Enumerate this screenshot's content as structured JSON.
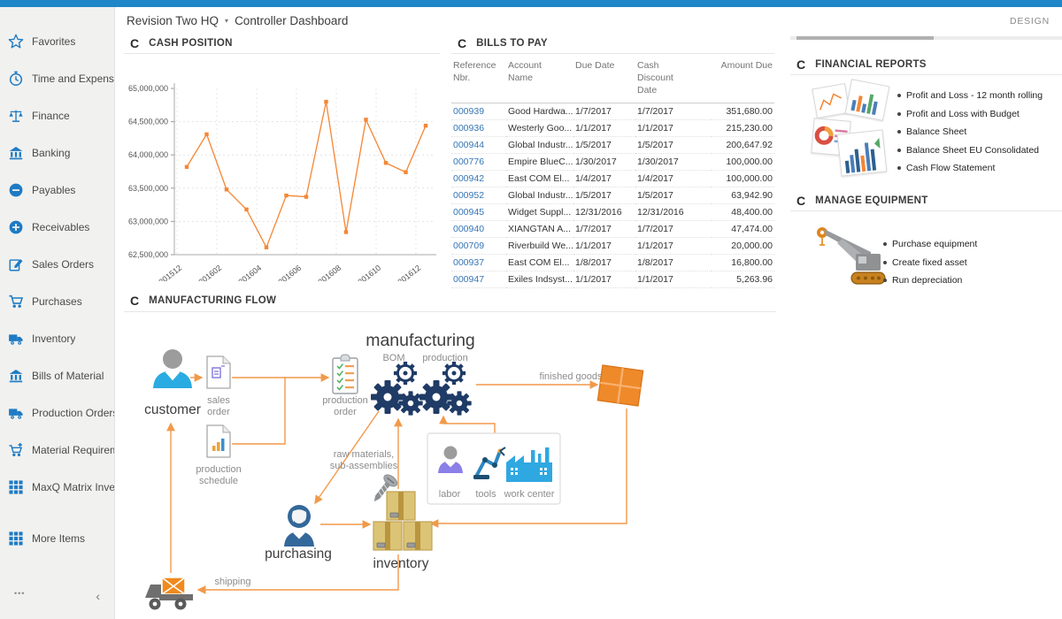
{
  "header": {
    "company": "Revision Two HQ",
    "caret": "▾",
    "page_title": "Controller Dashboard",
    "design_label": "DESIGN"
  },
  "sidebar": {
    "items": [
      {
        "label": "Favorites",
        "icon": "star-icon"
      },
      {
        "label": "Time and Expenses",
        "icon": "clock-icon"
      },
      {
        "label": "Finance",
        "icon": "scales-icon"
      },
      {
        "label": "Banking",
        "icon": "bank-icon"
      },
      {
        "label": "Payables",
        "icon": "minus-circle-icon"
      },
      {
        "label": "Receivables",
        "icon": "plus-circle-icon"
      },
      {
        "label": "Sales Orders",
        "icon": "edit-icon"
      },
      {
        "label": "Purchases",
        "icon": "cart-icon"
      },
      {
        "label": "Inventory",
        "icon": "truck-icon"
      },
      {
        "label": "Bills of Material",
        "icon": "building-icon"
      },
      {
        "label": "Production Orders",
        "icon": "truck-icon"
      },
      {
        "label": "Material Requirem...",
        "icon": "cart-plus-icon"
      },
      {
        "label": "MaxQ Matrix Invent...",
        "icon": "grid-icon"
      },
      {
        "label": "More Items",
        "icon": "grid-icon"
      }
    ],
    "more_dots": "•••",
    "collapse": "‹"
  },
  "cash_position": {
    "title": "CASH POSITION",
    "refresh_glyph": "C"
  },
  "chart_data": {
    "type": "line",
    "title": "CASH POSITION",
    "x": [
      "201512",
      "201601",
      "201602",
      "201603",
      "201604",
      "201605",
      "201606",
      "201607",
      "201608",
      "201609",
      "201610",
      "201611",
      "201612"
    ],
    "values": [
      63820000,
      64310000,
      63480000,
      63180000,
      62610000,
      63390000,
      63370000,
      64800000,
      62840000,
      64530000,
      63880000,
      63740000,
      64440000
    ],
    "x_tick_labels": [
      "201512",
      "201602",
      "201604",
      "201606",
      "201608",
      "201610",
      "201612"
    ],
    "y_ticks": [
      "65,000,000",
      "64,500,000",
      "64,000,000",
      "63,500,000",
      "63,000,000",
      "62,500,000"
    ],
    "ylim": [
      62500000,
      65000000
    ],
    "line_color": "#f58634",
    "grid": true,
    "legend": "none"
  },
  "bills": {
    "title": "BILLS TO PAY",
    "refresh_glyph": "C",
    "columns": [
      [
        "Reference",
        "Nbr."
      ],
      [
        "Account",
        "Name"
      ],
      [
        "Due Date"
      ],
      [
        "Cash",
        "Discount",
        "Date"
      ],
      [
        "Amount Due"
      ]
    ],
    "rows": [
      [
        "000939",
        "Good Hardwa...",
        "1/7/2017",
        "1/7/2017",
        "351,680.00"
      ],
      [
        "000936",
        "Westerly Goo...",
        "1/1/2017",
        "1/1/2017",
        "215,230.00"
      ],
      [
        "000944",
        "Global Industr...",
        "1/5/2017",
        "1/5/2017",
        "200,647.92"
      ],
      [
        "000776",
        "Empire BlueC...",
        "1/30/2017",
        "1/30/2017",
        "100,000.00"
      ],
      [
        "000942",
        "East COM El...",
        "1/4/2017",
        "1/4/2017",
        "100,000.00"
      ],
      [
        "000952",
        "Global Industr...",
        "1/5/2017",
        "1/5/2017",
        "63,942.90"
      ],
      [
        "000945",
        "Widget Suppl...",
        "12/31/2016",
        "12/31/2016",
        "48,400.00"
      ],
      [
        "000940",
        "XIANGTAN A...",
        "1/7/2017",
        "1/7/2017",
        "47,474.00"
      ],
      [
        "000709",
        "Riverbuild We...",
        "1/1/2017",
        "1/1/2017",
        "20,000.00"
      ],
      [
        "000937",
        "East COM El...",
        "1/8/2017",
        "1/8/2017",
        "16,800.00"
      ],
      [
        "000947",
        "Exiles Indsyst...",
        "1/1/2017",
        "1/1/2017",
        "5,263.96"
      ]
    ]
  },
  "financial_reports": {
    "title": "FINANCIAL REPORTS",
    "refresh_glyph": "C",
    "items": [
      "Profit and Loss - 12 month rolling",
      "Profit and Loss with Budget",
      "Balance Sheet",
      "Balance Sheet EU Consolidated",
      "Cash Flow Statement"
    ]
  },
  "manage_equipment": {
    "title": "MANAGE EQUIPMENT",
    "refresh_glyph": "C",
    "items": [
      "Purchase equipment",
      "Create fixed asset",
      "Run depreciation"
    ]
  },
  "flow": {
    "title": "MANUFACTURING FLOW",
    "refresh_glyph": "C",
    "labels": {
      "customer": "customer",
      "sales1": "sales",
      "sales2": "order",
      "prodsch1": "production",
      "prodsch2": "schedule",
      "prodord1": "production",
      "prodord2": "order",
      "manufacturing": "manufacturing",
      "bom": "BOM",
      "production": "production",
      "finished_goods": "finished goods",
      "raw1": "raw materials,",
      "raw2": "sub-assemblies",
      "labor": "labor",
      "tools": "tools",
      "work_center": "work center",
      "inventory": "inventory",
      "purchasing": "purchasing",
      "shipping": "shipping"
    }
  },
  "colors": {
    "topbar": "#1f86c8",
    "sidebar_icon": "#1e7bc4",
    "link": "#3575b5",
    "chart_line": "#f58634",
    "arrow": "#f2994a",
    "gear": "#1f3b66"
  }
}
